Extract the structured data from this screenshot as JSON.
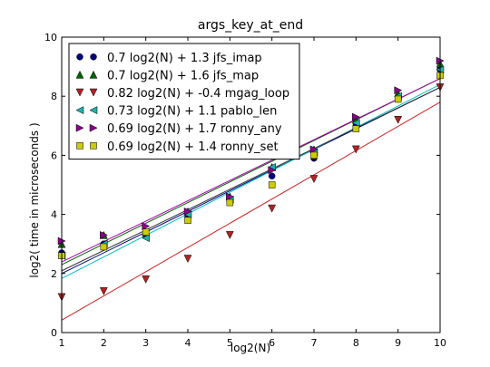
{
  "chart_data": {
    "type": "scatter",
    "title": "args_key_at_end",
    "xlabel": "log2(N)",
    "ylabel": "log2( time in microseconds )",
    "xlim": [
      1,
      10
    ],
    "ylim": [
      0,
      10
    ],
    "xticks": [
      1,
      2,
      3,
      4,
      5,
      6,
      7,
      8,
      9,
      10
    ],
    "yticks": [
      0,
      2,
      4,
      6,
      8,
      10
    ],
    "grid": false,
    "legend_position": "top-left",
    "series": [
      {
        "name": "0.7 log2(N) + 1.3 jfs_imap",
        "marker": "circle",
        "color": "#000080",
        "line_color": "#000080",
        "slope": 0.7,
        "intercept": 1.3,
        "points": [
          [
            1,
            2.7
          ],
          [
            2,
            3.0
          ],
          [
            3,
            3.3
          ],
          [
            4,
            3.9
          ],
          [
            5,
            4.5
          ],
          [
            6,
            5.3
          ],
          [
            7,
            5.9
          ],
          [
            8,
            7.0
          ],
          [
            9,
            7.9
          ],
          [
            10,
            8.9
          ]
        ]
      },
      {
        "name": "0.7 log2(N) + 1.6 jfs_map",
        "marker": "triangle-up",
        "color": "#006400",
        "line_color": "#006400",
        "slope": 0.7,
        "intercept": 1.6,
        "points": [
          [
            1,
            3.0
          ],
          [
            2,
            3.3
          ],
          [
            3,
            3.4
          ],
          [
            4,
            4.1
          ],
          [
            5,
            4.6
          ],
          [
            6,
            5.6
          ],
          [
            7,
            6.2
          ],
          [
            8,
            7.2
          ],
          [
            9,
            8.1
          ],
          [
            10,
            9.1
          ]
        ]
      },
      {
        "name": "0.82 log2(N) + -0.4 mgag_loop",
        "marker": "triangle-down",
        "color": "#b22222",
        "line_color": "#cc2222",
        "slope": 0.82,
        "intercept": -0.4,
        "points": [
          [
            1,
            1.2
          ],
          [
            2,
            1.4
          ],
          [
            3,
            1.8
          ],
          [
            4,
            2.5
          ],
          [
            5,
            3.3
          ],
          [
            6,
            4.2
          ],
          [
            7,
            5.2
          ],
          [
            8,
            6.2
          ],
          [
            9,
            7.2
          ],
          [
            10,
            8.3
          ]
        ]
      },
      {
        "name": "0.73 log2(N) + 1.1 pablo_len",
        "marker": "triangle-left",
        "color": "#20b2aa",
        "line_color": "#00bfbf",
        "slope": 0.73,
        "intercept": 1.1,
        "points": [
          [
            1,
            2.6
          ],
          [
            2,
            3.0
          ],
          [
            3,
            3.2
          ],
          [
            4,
            4.0
          ],
          [
            5,
            4.5
          ],
          [
            6,
            5.6
          ],
          [
            7,
            6.1
          ],
          [
            8,
            7.1
          ],
          [
            9,
            8.0
          ],
          [
            10,
            8.9
          ]
        ]
      },
      {
        "name": "0.69 log2(N) + 1.7 ronny_any",
        "marker": "triangle-right",
        "color": "#8b008b",
        "line_color": "#aa00aa",
        "slope": 0.69,
        "intercept": 1.7,
        "points": [
          [
            1,
            3.1
          ],
          [
            2,
            3.3
          ],
          [
            3,
            3.6
          ],
          [
            4,
            4.1
          ],
          [
            5,
            4.6
          ],
          [
            6,
            5.5
          ],
          [
            7,
            6.2
          ],
          [
            8,
            7.3
          ],
          [
            9,
            8.2
          ],
          [
            10,
            9.2
          ]
        ]
      },
      {
        "name": "0.69 log2(N) + 1.4 ronny_set",
        "marker": "square",
        "color": "#cccc00",
        "line_color": "#333333",
        "slope": 0.69,
        "intercept": 1.4,
        "points": [
          [
            1,
            2.6
          ],
          [
            2,
            2.9
          ],
          [
            3,
            3.4
          ],
          [
            4,
            3.8
          ],
          [
            5,
            4.4
          ],
          [
            6,
            5.0
          ],
          [
            7,
            6.0
          ],
          [
            8,
            6.9
          ],
          [
            9,
            7.9
          ],
          [
            10,
            8.7
          ]
        ]
      }
    ]
  }
}
